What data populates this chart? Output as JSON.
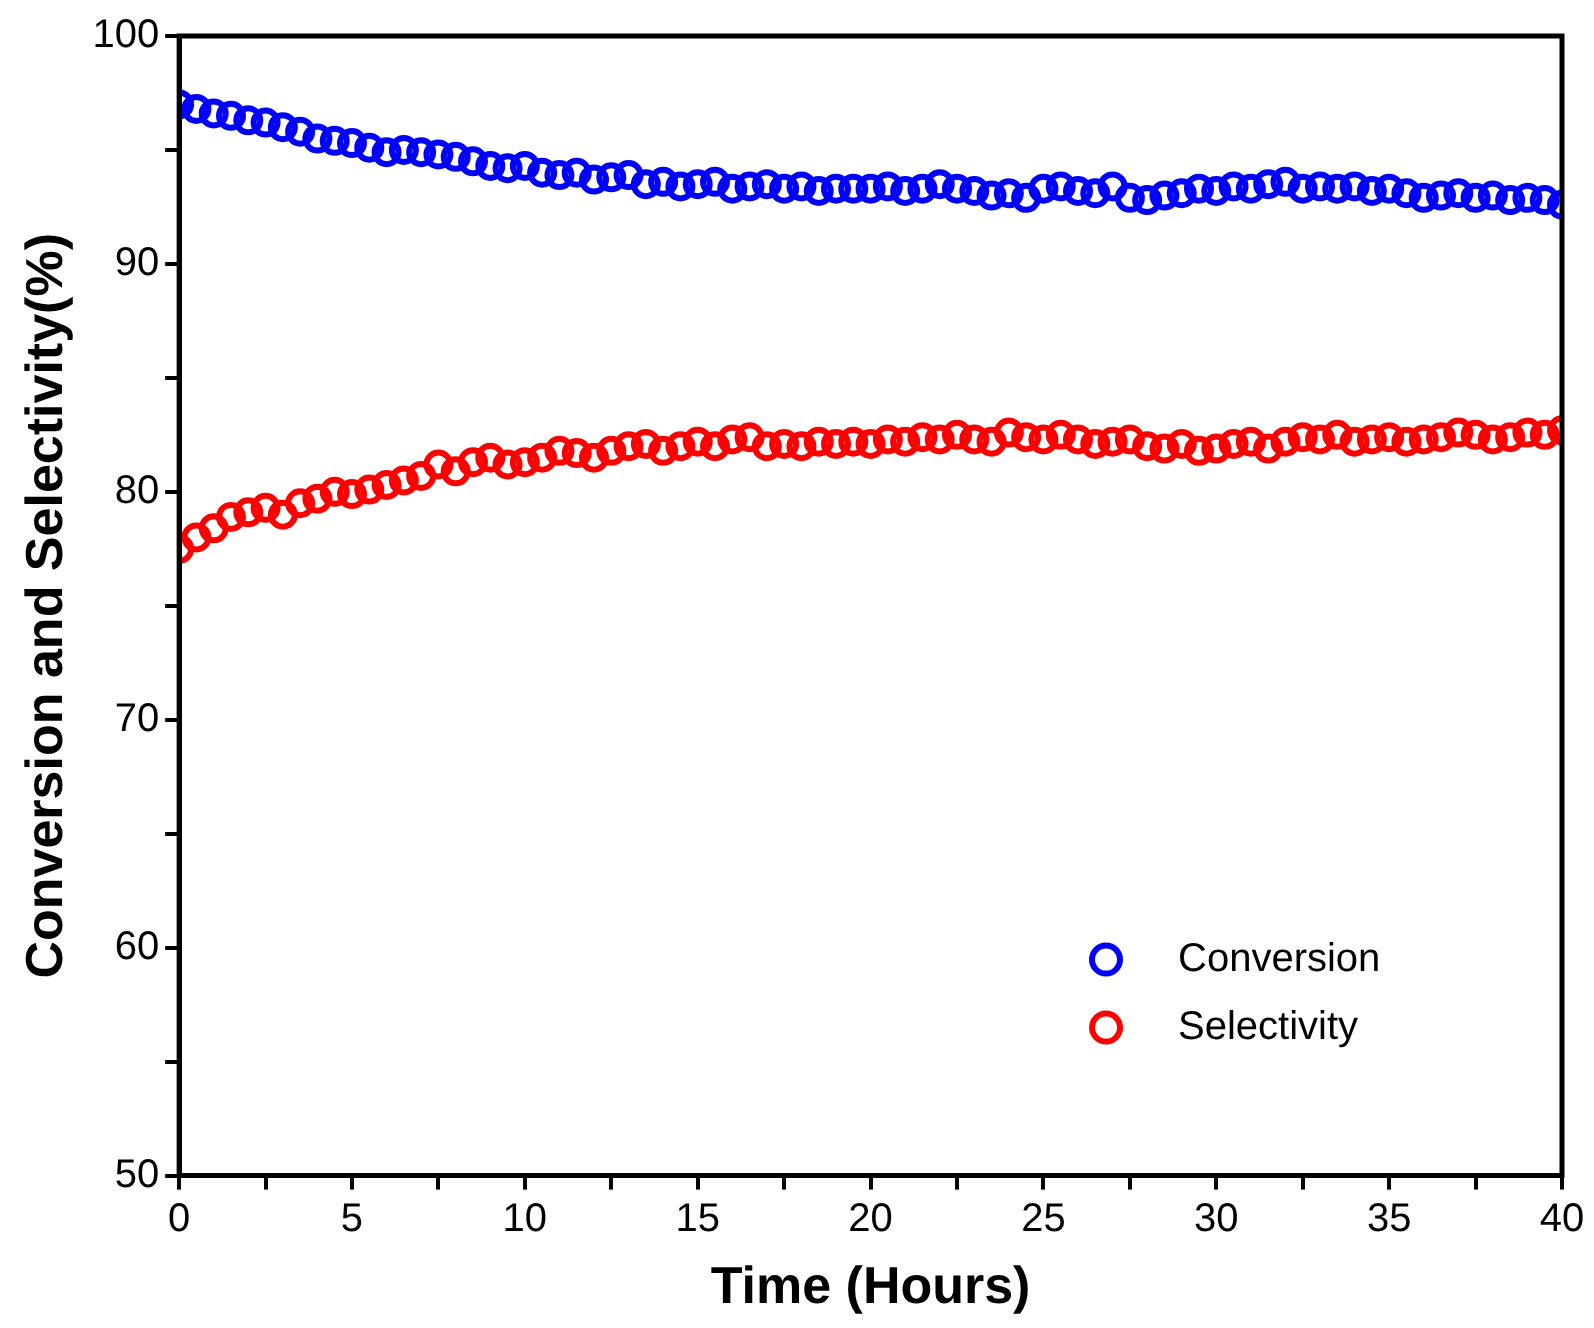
{
  "chart_data": {
    "type": "scatter",
    "xlabel": "Time (Hours)",
    "ylabel": "Conversion and Selectivity(%)",
    "x": [
      0,
      0.5,
      1,
      1.5,
      2,
      2.5,
      3,
      3.5,
      4,
      4.5,
      5,
      5.5,
      6,
      6.5,
      7,
      7.5,
      8,
      8.5,
      9,
      9.5,
      10,
      10.5,
      11,
      11.5,
      12,
      12.5,
      13,
      13.5,
      14,
      14.5,
      15,
      15.5,
      16,
      16.5,
      17,
      17.5,
      18,
      18.5,
      19,
      19.5,
      20,
      20.5,
      21,
      21.5,
      22,
      22.5,
      23,
      23.5,
      24,
      24.5,
      25,
      25.5,
      26,
      26.5,
      27,
      27.5,
      28,
      28.5,
      29,
      29.5,
      30,
      30.5,
      31,
      31.5,
      32,
      32.5,
      33,
      33.5,
      34,
      34.5,
      35,
      35.5,
      36,
      36.5,
      37,
      37.5,
      38,
      38.5,
      39,
      39.5,
      40
    ],
    "series": [
      {
        "name": "Conversion",
        "color": "#0000ff",
        "values": [
          97.0,
          96.8,
          96.6,
          96.5,
          96.3,
          96.2,
          96.0,
          95.8,
          95.5,
          95.4,
          95.3,
          95.1,
          94.9,
          95.0,
          94.9,
          94.8,
          94.7,
          94.5,
          94.3,
          94.2,
          94.3,
          94.0,
          93.9,
          94.0,
          93.7,
          93.8,
          93.9,
          93.5,
          93.6,
          93.4,
          93.5,
          93.6,
          93.3,
          93.4,
          93.5,
          93.3,
          93.4,
          93.2,
          93.3,
          93.3,
          93.3,
          93.4,
          93.2,
          93.3,
          93.5,
          93.3,
          93.2,
          93.0,
          93.1,
          92.9,
          93.3,
          93.4,
          93.2,
          93.1,
          93.4,
          92.9,
          92.8,
          93.0,
          93.1,
          93.3,
          93.2,
          93.4,
          93.3,
          93.5,
          93.6,
          93.3,
          93.4,
          93.3,
          93.4,
          93.2,
          93.3,
          93.1,
          92.9,
          93.0,
          93.1,
          92.9,
          93.0,
          92.8,
          92.9,
          92.8,
          92.6
        ]
      },
      {
        "name": "Selectivity",
        "color": "#ff0000",
        "values": [
          77.5,
          78.0,
          78.4,
          78.9,
          79.1,
          79.3,
          79.0,
          79.5,
          79.7,
          80.0,
          79.9,
          80.1,
          80.3,
          80.5,
          80.7,
          81.2,
          80.9,
          81.3,
          81.5,
          81.2,
          81.3,
          81.5,
          81.8,
          81.7,
          81.5,
          81.8,
          82.0,
          82.1,
          81.8,
          82.0,
          82.2,
          82.0,
          82.3,
          82.4,
          82.0,
          82.1,
          82.0,
          82.2,
          82.1,
          82.2,
          82.1,
          82.3,
          82.2,
          82.4,
          82.3,
          82.5,
          82.3,
          82.2,
          82.6,
          82.4,
          82.3,
          82.5,
          82.3,
          82.1,
          82.2,
          82.3,
          82.0,
          81.9,
          82.1,
          81.8,
          81.9,
          82.1,
          82.2,
          81.9,
          82.2,
          82.4,
          82.3,
          82.5,
          82.2,
          82.3,
          82.4,
          82.2,
          82.3,
          82.4,
          82.6,
          82.5,
          82.3,
          82.4,
          82.6,
          82.5,
          82.7
        ]
      }
    ],
    "xlim": [
      0,
      40
    ],
    "xticks": [
      0,
      {
        "value": 2.5,
        "label": null
      },
      5,
      {
        "value": 7.5,
        "label": null
      },
      10,
      {
        "value": 12.5,
        "label": null
      },
      15,
      {
        "value": 17.5,
        "label": null
      },
      20,
      {
        "value": 22.5,
        "label": null
      },
      25,
      {
        "value": 27.5,
        "label": null
      },
      30,
      {
        "value": 32.5,
        "label": null
      },
      35,
      {
        "value": 37.5,
        "label": null
      },
      40
    ],
    "ylim": [
      50,
      100
    ],
    "yticks": [
      50,
      {
        "value": 55,
        "label": null
      },
      60,
      {
        "value": 65,
        "label": null
      },
      70,
      {
        "value": 75,
        "label": null
      },
      80,
      {
        "value": 85,
        "label": null
      },
      90,
      {
        "value": 95,
        "label": null
      },
      100
    ],
    "grid": false,
    "legend": "bottom right",
    "marker": "circle"
  }
}
